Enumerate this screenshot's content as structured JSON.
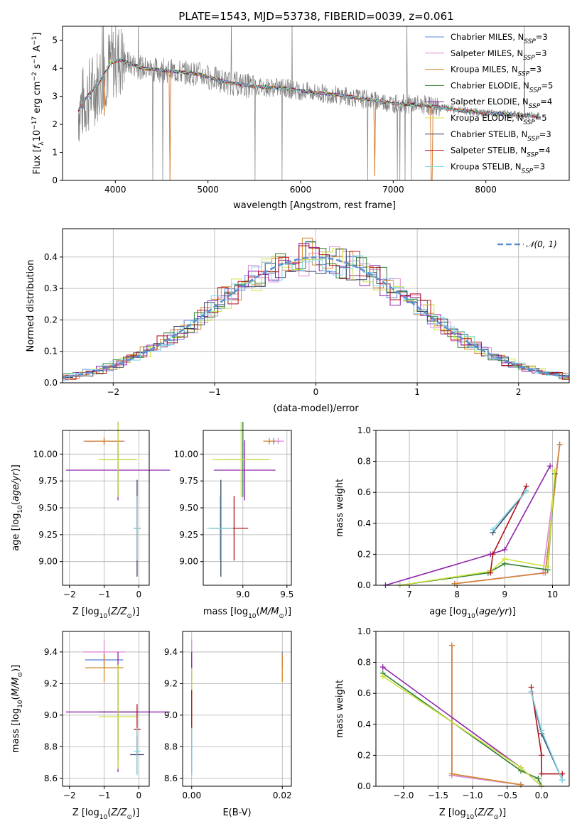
{
  "figure_title": "PLATE=1543, MJD=53738, FIBERID=0039, z=0.061",
  "colors": {
    "Chabrier MILES": "#5b84dc",
    "Salpeter MILES": "#e08ad8",
    "Kroupa MILES": "#d6872c",
    "Chabrier ELODIE": "#2e7d32",
    "Salpeter ELODIE": "#8e24aa",
    "Kroupa ELODIE": "#cde33c",
    "Chabrier STELIB": "#3a4466",
    "Salpeter STELIB": "#b0121b",
    "Kroupa STELIB": "#7fd8e6",
    "data": "#808080",
    "orange": "#e07a3c",
    "gauss": "#5b8fd0"
  },
  "chart_data": [
    {
      "type": "line",
      "title": "PLATE=1543, MJD=53738, FIBERID=0039, z=0.061",
      "xlabel": "wavelength [Angstrom, rest frame]",
      "xlim": [
        3430,
        8900
      ],
      "ylim": [
        0,
        5.5
      ],
      "xticks": [
        "4000",
        "5000",
        "6000",
        "7000",
        "8000"
      ],
      "yticks": [
        "0",
        "1",
        "2",
        "3",
        "4",
        "5"
      ],
      "legend_position": "upper right",
      "legend": [
        {
          "label": "Chabrier MILES, N",
          "sub": "SSP",
          "n": "=3",
          "key": "Chabrier MILES"
        },
        {
          "label": "Salpeter MILES, N",
          "sub": "SSP",
          "n": "=3",
          "key": "Salpeter MILES"
        },
        {
          "label": "Kroupa MILES, N",
          "sub": "SSP",
          "n": "=3",
          "key": "Kroupa MILES"
        },
        {
          "label": "Chabrier ELODIE, N",
          "sub": "SSP",
          "n": "=5",
          "key": "Chabrier ELODIE"
        },
        {
          "label": "Salpeter ELODIE, N",
          "sub": "SSP",
          "n": "=4",
          "key": "Salpeter ELODIE"
        },
        {
          "label": "Kroupa ELODIE, N",
          "sub": "SSP",
          "n": "=5",
          "key": "Kroupa ELODIE"
        },
        {
          "label": "Chabrier STELIB, N",
          "sub": "SSP",
          "n": "=3",
          "key": "Chabrier STELIB"
        },
        {
          "label": "Salpeter STELIB, N",
          "sub": "SSP",
          "n": "=4",
          "key": "Salpeter STELIB"
        },
        {
          "label": "Kroupa STELIB, N",
          "sub": "SSP",
          "n": "=3",
          "key": "Kroupa STELIB"
        }
      ],
      "continuum": [
        [
          3600,
          2.5
        ],
        [
          3700,
          3.0
        ],
        [
          3850,
          3.6
        ],
        [
          3950,
          4.2
        ],
        [
          4050,
          4.3
        ],
        [
          4300,
          4.0
        ],
        [
          4600,
          3.9
        ],
        [
          4900,
          3.8
        ],
        [
          5200,
          3.5
        ],
        [
          5500,
          3.35
        ],
        [
          5800,
          3.3
        ],
        [
          6100,
          3.15
        ],
        [
          6400,
          3.05
        ],
        [
          6700,
          2.9
        ],
        [
          7000,
          2.75
        ],
        [
          7300,
          2.7
        ],
        [
          7420,
          2.65
        ],
        [
          7700,
          2.5
        ],
        [
          8000,
          2.4
        ],
        [
          8300,
          2.35
        ],
        [
          8550,
          2.3
        ]
      ],
      "dips": [
        [
          4590,
          0
        ],
        [
          6800,
          0.15
        ],
        [
          7415,
          0
        ],
        [
          3880,
          2.3
        ]
      ],
      "data_xmax": 8580
    },
    {
      "type": "histogram",
      "xlabel": "(data-model)/error",
      "ylabel": "Normed distribution",
      "xlim": [
        -2.5,
        2.5
      ],
      "ylim": [
        0,
        0.49
      ],
      "xticks": [
        "−2",
        "−1",
        "0",
        "1",
        "2"
      ],
      "yticks": [
        "0.0",
        "0.1",
        "0.2",
        "0.3",
        "0.4"
      ],
      "legend": "𝒩(0, 1)",
      "grid": true
    },
    {
      "type": "scatter",
      "xlabel": "Z [log10(Z/Z⊙)]",
      "ylabel": "age [log10(age/yr)]",
      "xlim": [
        -2.2,
        0.3
      ],
      "ylim": [
        8.78,
        10.22
      ],
      "xticks": [
        -2,
        -1,
        0
      ],
      "yticks": [
        9.0,
        9.25,
        9.5,
        9.75,
        10.0
      ],
      "ytick_labels": [
        "9.00",
        "9.25",
        "9.50",
        "9.75",
        "10.00"
      ],
      "points": [
        {
          "key": "Chabrier MILES",
          "x": -1.0,
          "xerr": 0.55,
          "y": 10.12,
          "yerr": 0.03
        },
        {
          "key": "Salpeter MILES",
          "x": -1.0,
          "xerr": 0.6,
          "y": 10.12,
          "yerr": 0.03
        },
        {
          "key": "Kroupa MILES",
          "x": -1.0,
          "xerr": 0.55,
          "y": 10.12,
          "yerr": 0.03
        },
        {
          "key": "Chabrier ELODIE",
          "x": -0.6,
          "xerr": 0.55,
          "y": 9.95,
          "yerr": 0.35
        },
        {
          "key": "Salpeter ELODIE",
          "x": -0.6,
          "xerr": 1.5,
          "y": 9.85,
          "yerr": 0.28
        },
        {
          "key": "Kroupa ELODIE",
          "x": -0.6,
          "xerr": 0.55,
          "y": 9.95,
          "yerr": 0.35
        },
        {
          "key": "Chabrier STELIB",
          "x": -0.05,
          "xerr": 0.1,
          "y": 9.31,
          "yerr": 0.45
        },
        {
          "key": "Salpeter STELIB",
          "x": -0.05,
          "xerr": 0.1,
          "y": 9.31,
          "yerr": 0.3
        },
        {
          "key": "Kroupa STELIB",
          "x": -0.05,
          "xerr": 0.1,
          "y": 9.31,
          "yerr": 0.3
        }
      ]
    },
    {
      "type": "scatter",
      "xlabel": "mass [log10(M/M⊙)]",
      "xlim": [
        8.55,
        9.55
      ],
      "ylim": [
        8.78,
        10.22
      ],
      "xticks": [
        9.0,
        9.5
      ],
      "xtick_labels": [
        "9.0",
        "9.5"
      ],
      "yticks": [
        9.0,
        9.25,
        9.5,
        9.75,
        10.0
      ],
      "ytick_labels": [
        "9.00",
        "9.25",
        "9.50",
        "9.75",
        "10.00"
      ],
      "points": [
        {
          "key": "Chabrier MILES",
          "x": 9.35,
          "xerr": 0.07,
          "y": 10.12,
          "yerr": 0.03
        },
        {
          "key": "Salpeter MILES",
          "x": 9.4,
          "xerr": 0.07,
          "y": 10.12,
          "yerr": 0.03
        },
        {
          "key": "Kroupa MILES",
          "x": 9.3,
          "xerr": 0.07,
          "y": 10.12,
          "yerr": 0.03
        },
        {
          "key": "Chabrier ELODIE",
          "x": 9.0,
          "xerr": 0.3,
          "y": 9.95,
          "yerr": 0.35
        },
        {
          "key": "Salpeter ELODIE",
          "x": 9.02,
          "xerr": 0.35,
          "y": 9.85,
          "yerr": 0.28
        },
        {
          "key": "Kroupa ELODIE",
          "x": 8.98,
          "xerr": 0.33,
          "y": 9.95,
          "yerr": 0.35
        },
        {
          "key": "Chabrier STELIB",
          "x": 8.75,
          "xerr": 0.12,
          "y": 9.31,
          "yerr": 0.45
        },
        {
          "key": "Salpeter STELIB",
          "x": 8.9,
          "xerr": 0.16,
          "y": 9.31,
          "yerr": 0.3
        },
        {
          "key": "Kroupa STELIB",
          "x": 8.74,
          "xerr": 0.15,
          "y": 9.31,
          "yerr": 0.3
        }
      ]
    },
    {
      "type": "line",
      "xlabel": "age [log10(age/yr)]",
      "ylabel": "mass weight",
      "xlim": [
        6.3,
        10.35
      ],
      "ylim": [
        0,
        1.0
      ],
      "xticks": [
        7,
        8,
        9,
        10
      ],
      "yticks": [
        0,
        0.2,
        0.4,
        0.6,
        0.8,
        1.0
      ],
      "ytick_labels": [
        "0.0",
        "0.2",
        "0.4",
        "0.6",
        "0.8",
        "1.0"
      ],
      "grid": true,
      "series": [
        {
          "key": "Chabrier MILES",
          "x": [
            7.95,
            9.85,
            10.15
          ],
          "y": [
            0.01,
            0.08,
            0.91
          ]
        },
        {
          "key": "Salpeter MILES",
          "x": [
            7.95,
            9.8,
            10.15
          ],
          "y": [
            0.01,
            0.08,
            0.91
          ]
        },
        {
          "key": "Kroupa MILES",
          "x": [
            7.95,
            9.85,
            10.15
          ],
          "y": [
            0.01,
            0.08,
            0.91
          ]
        },
        {
          "key": "Chabrier ELODIE",
          "x": [
            6.8,
            8.65,
            9.0,
            9.9,
            10.05
          ],
          "y": [
            0.0,
            0.08,
            0.14,
            0.1,
            0.72
          ]
        },
        {
          "key": "Salpeter ELODIE",
          "x": [
            6.5,
            8.7,
            9.0,
            9.95
          ],
          "y": [
            0.0,
            0.2,
            0.23,
            0.77
          ]
        },
        {
          "key": "Kroupa ELODIE",
          "x": [
            6.8,
            8.7,
            9.0,
            9.9,
            10.05
          ],
          "y": [
            0.0,
            0.09,
            0.17,
            0.12,
            0.74
          ]
        },
        {
          "key": "Chabrier STELIB",
          "x": [
            8.75,
            9.45
          ],
          "y": [
            0.34,
            0.61
          ]
        },
        {
          "key": "Salpeter STELIB",
          "x": [
            8.7,
            8.75,
            9.45
          ],
          "y": [
            0.08,
            0.2,
            0.64
          ]
        },
        {
          "key": "Kroupa STELIB",
          "x": [
            8.75,
            9.45
          ],
          "y": [
            0.36,
            0.61
          ]
        }
      ]
    },
    {
      "type": "scatter",
      "xlabel": "Z [log10(Z/Z⊙)]",
      "ylabel": "mass [log10(M/M⊙)]",
      "xlim": [
        -2.2,
        0.3
      ],
      "ylim": [
        8.55,
        9.53
      ],
      "xticks": [
        -2,
        -1,
        0
      ],
      "yticks": [
        8.6,
        8.8,
        9.0,
        9.2,
        9.4
      ],
      "ytick_labels": [
        "8.6",
        "8.8",
        "9.0",
        "9.2",
        "9.4"
      ],
      "points": [
        {
          "key": "Chabrier MILES",
          "x": -1.0,
          "xerr": 0.55,
          "y": 9.35,
          "yerr": 0.05
        },
        {
          "key": "Salpeter MILES",
          "x": -1.0,
          "xerr": 0.6,
          "y": 9.4,
          "yerr": 0.08
        },
        {
          "key": "Kroupa MILES",
          "x": -1.0,
          "xerr": 0.55,
          "y": 9.3,
          "yerr": 0.09
        },
        {
          "key": "Chabrier ELODIE",
          "x": -0.6,
          "xerr": 0.55,
          "y": 9.02,
          "yerr": 0.3
        },
        {
          "key": "Salpeter ELODIE",
          "x": -0.6,
          "xerr": 1.5,
          "y": 9.02,
          "yerr": 0.38
        },
        {
          "key": "Kroupa ELODIE",
          "x": -0.6,
          "xerr": 0.55,
          "y": 8.99,
          "yerr": 0.33
        },
        {
          "key": "Chabrier STELIB",
          "x": -0.05,
          "xerr": 0.2,
          "y": 8.75,
          "yerr": 0.12
        },
        {
          "key": "Salpeter STELIB",
          "x": -0.05,
          "xerr": 0.1,
          "y": 8.91,
          "yerr": 0.16
        },
        {
          "key": "Kroupa STELIB",
          "x": -0.05,
          "xerr": 0.1,
          "y": 8.77,
          "yerr": 0.15
        }
      ]
    },
    {
      "type": "scatter",
      "xlabel": "E(B-V)",
      "xlim": [
        -0.002,
        0.022
      ],
      "ylim": [
        8.55,
        9.53
      ],
      "xticks": [
        0.0,
        0.02
      ],
      "xtick_labels": [
        "0.00",
        "0.02"
      ],
      "yticks": [
        8.6,
        8.8,
        9.0,
        9.2,
        9.4
      ],
      "ytick_labels": [
        "8.6",
        "8.8",
        "9.0",
        "9.2",
        "9.4"
      ],
      "points": [
        {
          "key": "Chabrier MILES",
          "x": 0.02,
          "xerr": 0,
          "y": 9.35,
          "yerr": 0.05
        },
        {
          "key": "Salpeter MILES",
          "x": 0.0,
          "xerr": 0,
          "y": 9.4,
          "yerr": 0.08
        },
        {
          "key": "Kroupa MILES",
          "x": 0.02,
          "xerr": 0,
          "y": 9.3,
          "yerr": 0.09
        },
        {
          "key": "Chabrier ELODIE",
          "x": 0.0,
          "xerr": 0,
          "y": 9.02,
          "yerr": 0.3
        },
        {
          "key": "Salpeter ELODIE",
          "x": 0.0,
          "xerr": 0,
          "y": 9.3,
          "yerr": 0.1
        },
        {
          "key": "Kroupa ELODIE",
          "x": 0.0,
          "xerr": 0,
          "y": 9.1,
          "yerr": 0.2
        },
        {
          "key": "Chabrier STELIB",
          "x": 0.0,
          "xerr": 0,
          "y": 8.75,
          "yerr": 0.12
        },
        {
          "key": "Salpeter STELIB",
          "x": 0.0,
          "xerr": 0,
          "y": 9.0,
          "yerr": 0.16
        },
        {
          "key": "Kroupa STELIB",
          "x": 0.0,
          "xerr": 0,
          "y": 8.77,
          "yerr": 0.15
        }
      ]
    },
    {
      "type": "line",
      "xlabel": "Z [log10(Z/Z⊙)]",
      "ylabel": "mass weight",
      "xlim": [
        -2.4,
        0.4
      ],
      "ylim": [
        0,
        1.0
      ],
      "xticks": [
        -2.0,
        -1.5,
        -1.0,
        -0.5,
        0.0
      ],
      "xtick_labels": [
        "−2.0",
        "−1.5",
        "−1.0",
        "−0.5",
        "0.0"
      ],
      "yticks": [
        0,
        0.2,
        0.4,
        0.6,
        0.8,
        1.0
      ],
      "ytick_labels": [
        "0.0",
        "0.2",
        "0.4",
        "0.6",
        "0.8",
        "1.0"
      ],
      "grid": true,
      "series": [
        {
          "key": "Chabrier MILES",
          "x": [
            -1.3,
            -1.3,
            -0.3
          ],
          "y": [
            0.91,
            0.07,
            0.01
          ]
        },
        {
          "key": "Salpeter MILES",
          "x": [
            -1.3,
            -1.3,
            -0.3
          ],
          "y": [
            0.91,
            0.07,
            0.01
          ]
        },
        {
          "key": "Kroupa MILES",
          "x": [
            -1.3,
            -1.3,
            -0.3
          ],
          "y": [
            0.91,
            0.08,
            0.01
          ]
        },
        {
          "key": "Chabrier ELODIE",
          "x": [
            -2.3,
            -0.3,
            -0.05,
            0.0
          ],
          "y": [
            0.73,
            0.1,
            0.05,
            0.0
          ]
        },
        {
          "key": "Salpeter ELODIE",
          "x": [
            -2.3,
            -0.3,
            0.0
          ],
          "y": [
            0.77,
            0.12,
            0.0
          ]
        },
        {
          "key": "Kroupa ELODIE",
          "x": [
            -2.3,
            -0.3,
            0.0
          ],
          "y": [
            0.71,
            0.12,
            0.0
          ]
        },
        {
          "key": "Chabrier STELIB",
          "x": [
            -0.15,
            0.0,
            0.3
          ],
          "y": [
            0.61,
            0.34,
            0.04
          ]
        },
        {
          "key": "Salpeter STELIB",
          "x": [
            -0.15,
            0.0,
            0.0,
            0.3
          ],
          "y": [
            0.64,
            0.2,
            0.08,
            0.08
          ]
        },
        {
          "key": "Kroupa STELIB",
          "x": [
            -0.15,
            0.0,
            0.3
          ],
          "y": [
            0.61,
            0.36,
            0.04
          ]
        }
      ]
    }
  ]
}
